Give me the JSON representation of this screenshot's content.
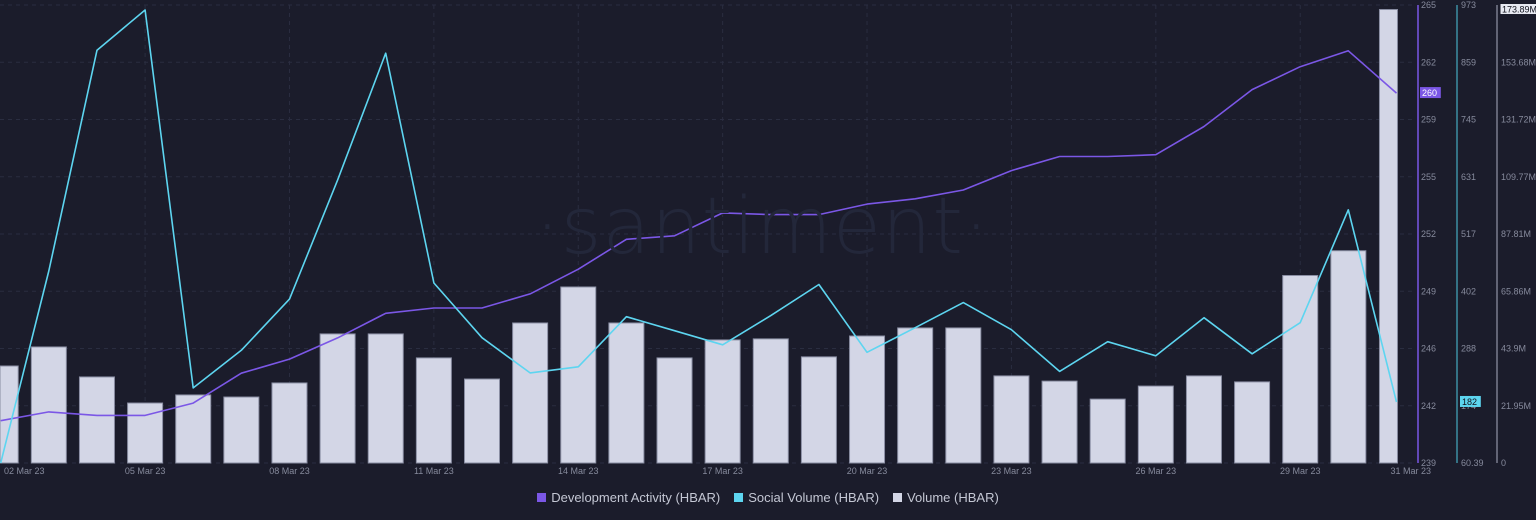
{
  "watermark": "·santiment·",
  "legend": [
    {
      "label": "Development Activity (HBAR)",
      "color": "#7b57e6"
    },
    {
      "label": "Social Volume (HBAR)",
      "color": "#5dd5f0"
    },
    {
      "label": "Volume (HBAR)",
      "color": "#d3d6e6"
    }
  ],
  "axes": {
    "dev": {
      "ticks": [
        "265",
        "262",
        "259",
        "255",
        "252",
        "249",
        "246",
        "242",
        "239"
      ],
      "current_label": "260",
      "color": "#7b57e6"
    },
    "social": {
      "ticks": [
        "973",
        "859",
        "745",
        "631",
        "517",
        "402",
        "288",
        "174",
        "60.39"
      ],
      "current_label": "182",
      "color": "#5dd5f0"
    },
    "volume": {
      "ticks": [
        "175.63M",
        "153.68M",
        "131.72M",
        "109.77M",
        "87.81M",
        "65.86M",
        "43.9M",
        "21.95M",
        "0"
      ],
      "current_label": "173.89M",
      "color": "#d3d6e6"
    }
  },
  "chart_data": {
    "type": "bar",
    "title": "",
    "xlabel": "",
    "ylabel": "",
    "categories": [
      "02 Mar 23",
      "03 Mar 23",
      "04 Mar 23",
      "05 Mar 23",
      "06 Mar 23",
      "07 Mar 23",
      "08 Mar 23",
      "09 Mar 23",
      "10 Mar 23",
      "11 Mar 23",
      "12 Mar 23",
      "13 Mar 23",
      "14 Mar 23",
      "15 Mar 23",
      "16 Mar 23",
      "17 Mar 23",
      "18 Mar 23",
      "19 Mar 23",
      "20 Mar 23",
      "21 Mar 23",
      "22 Mar 23",
      "23 Mar 23",
      "24 Mar 23",
      "25 Mar 23",
      "26 Mar 23",
      "27 Mar 23",
      "28 Mar 23",
      "29 Mar 23",
      "30 Mar 23",
      "31 Mar 23"
    ],
    "x_tick_labels": [
      "02 Mar 23",
      "05 Mar 23",
      "08 Mar 23",
      "11 Mar 23",
      "14 Mar 23",
      "17 Mar 23",
      "20 Mar 23",
      "23 Mar 23",
      "26 Mar 23",
      "29 Mar 23",
      "31 Mar 23"
    ],
    "series": [
      {
        "name": "Development Activity (HBAR)",
        "type": "line",
        "axis": "right-1",
        "color": "#7b57e6",
        "values": [
          241.4,
          241.9,
          241.7,
          241.7,
          242.4,
          244.1,
          244.9,
          246.1,
          247.5,
          247.8,
          247.8,
          248.6,
          250.0,
          251.7,
          251.9,
          253.2,
          253.1,
          253.1,
          253.7,
          254.0,
          254.5,
          255.6,
          256.4,
          256.4,
          256.5,
          258.1,
          260.2,
          261.5,
          262.4,
          260.0
        ],
        "ylim": [
          239,
          265
        ]
      },
      {
        "name": "Social Volume (HBAR)",
        "type": "line",
        "axis": "right-2",
        "color": "#5dd5f0",
        "values": [
          60.4,
          443,
          883,
          963,
          210,
          285,
          387,
          624,
          877,
          419,
          310,
          240,
          252,
          352,
          324,
          296,
          354,
          416,
          281,
          330,
          380,
          326,
          243,
          302,
          274,
          350,
          278,
          340,
          565,
          182
        ],
        "ylim": [
          60.39,
          973
        ]
      },
      {
        "name": "Volume (HBAR)",
        "type": "bar",
        "axis": "right-3",
        "color": "#d3d6e6",
        "values": [
          37.2,
          44.5,
          33.0,
          23.0,
          26.1,
          25.3,
          30.7,
          49.5,
          49.5,
          40.3,
          32.2,
          53.7,
          67.5,
          53.7,
          40.3,
          47.2,
          47.6,
          40.7,
          48.7,
          51.8,
          51.8,
          33.4,
          31.4,
          24.5,
          29.5,
          33.4,
          31.1,
          71.9,
          81.4,
          173.9
        ],
        "unit": "M",
        "ylim": [
          0,
          175.63
        ]
      }
    ],
    "grid": true,
    "legend_position": "bottom"
  }
}
